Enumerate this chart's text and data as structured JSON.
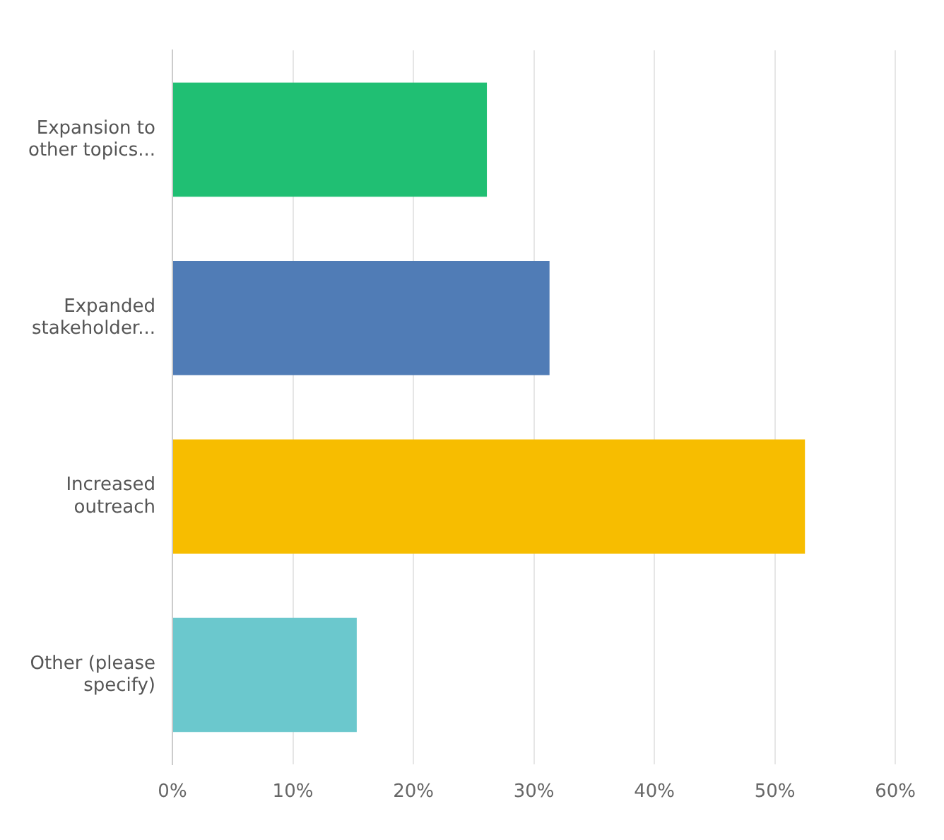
{
  "chart_data": {
    "type": "bar",
    "orientation": "horizontal",
    "categories": [
      "Expansion to other topics...",
      "Expanded stakeholder...",
      "Increased outreach",
      "Other (please specify)"
    ],
    "values": [
      26.1,
      31.3,
      52.5,
      15.3
    ],
    "colors": [
      "#20bf73",
      "#507cb6",
      "#f7bd00",
      "#6bc8cd"
    ],
    "xlim": [
      0,
      60
    ],
    "xticks": [
      {
        "value": 0,
        "label": "0%"
      },
      {
        "value": 10,
        "label": "10%"
      },
      {
        "value": 20,
        "label": "20%"
      },
      {
        "value": 30,
        "label": "30%"
      },
      {
        "value": 40,
        "label": "40%"
      },
      {
        "value": 50,
        "label": "50%"
      },
      {
        "value": 60,
        "label": "60%"
      }
    ],
    "grid": "x",
    "legend": false
  }
}
